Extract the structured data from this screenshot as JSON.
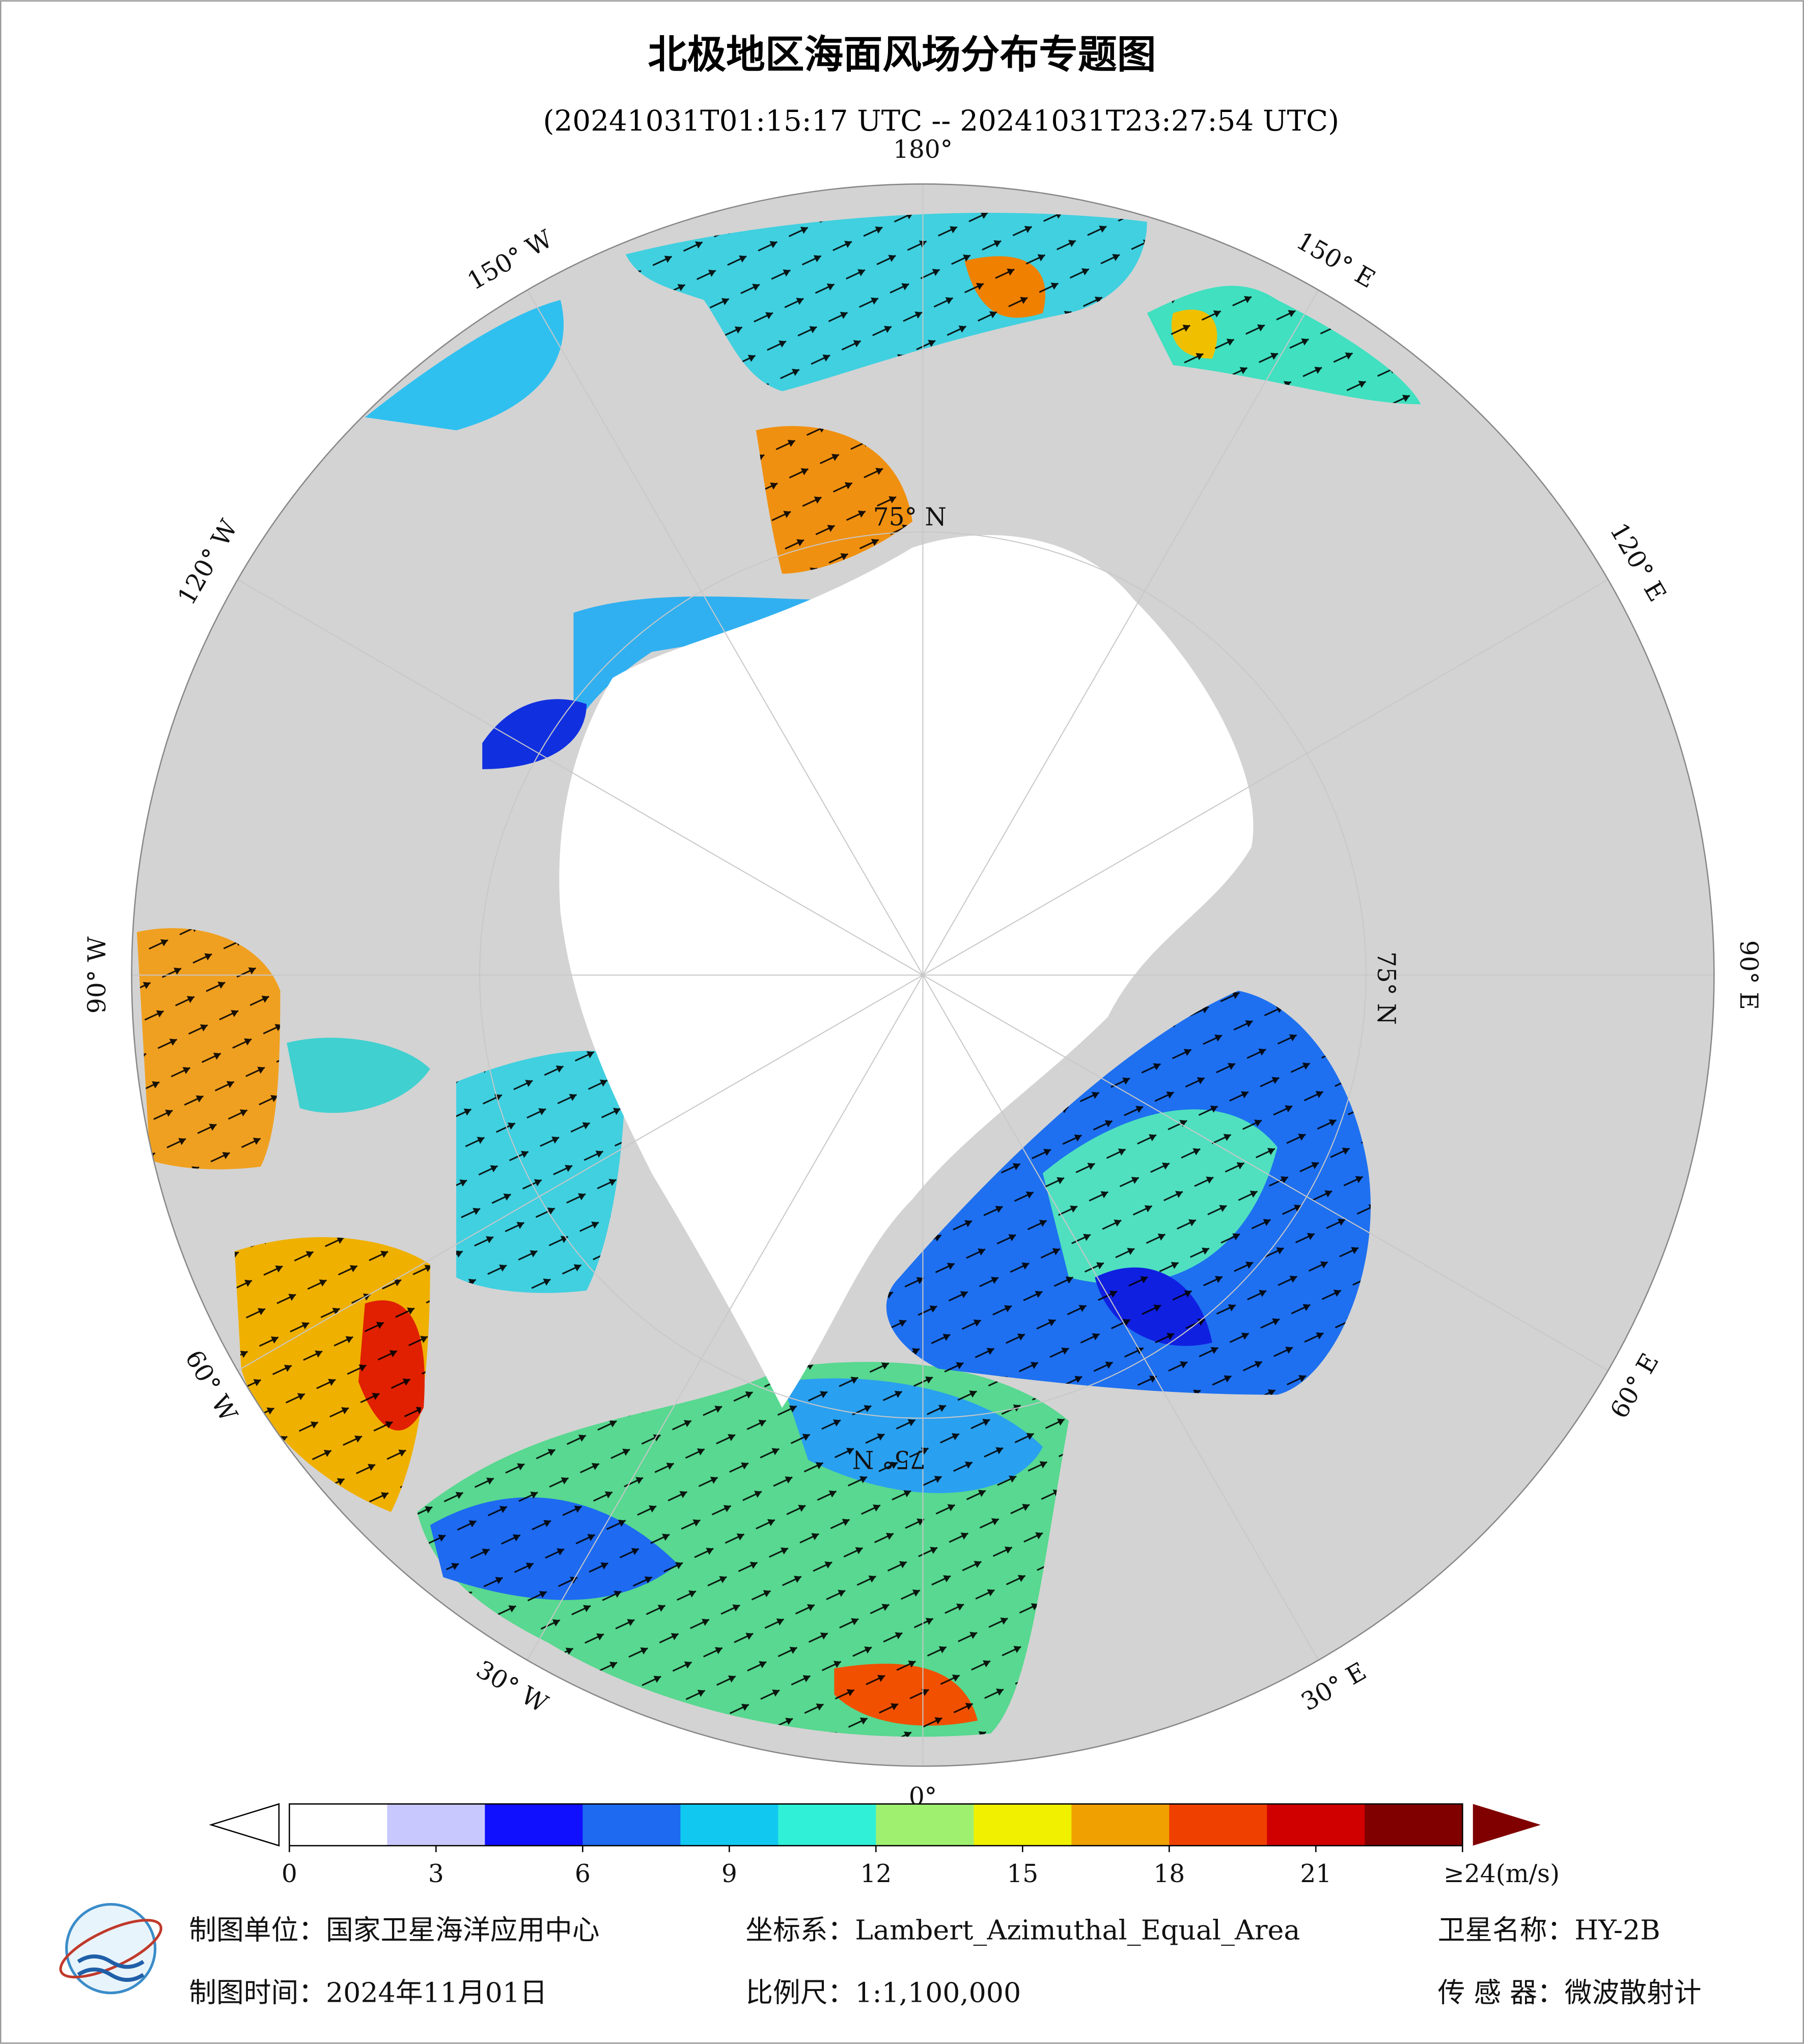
{
  "map": {
    "title": "北极地区海面风场分布专题图",
    "subtitle": "(20241031T01:15:17 UTC -- 20241031T23:27:54 UTC)",
    "meridian_labels": [
      "0°",
      "30° E",
      "60° E",
      "90° E",
      "120° E",
      "150° E",
      "180°",
      "150° W",
      "120° W",
      "90° W",
      "60° W",
      "30° W"
    ],
    "parallel_labels": [
      "75° N",
      "75° N",
      "75° N"
    ],
    "colorbar": {
      "range": [
        0,
        24
      ],
      "ticks": [
        0,
        3,
        6,
        9,
        12,
        15,
        18,
        21,
        {
          "value": 24,
          "label": "≥24(m/s)"
        }
      ],
      "colors": [
        "#ffffff",
        "#c8c8ff",
        "#1010ff",
        "#1e6af0",
        "#10c8f0",
        "#30f0d8",
        "#a0f070",
        "#f0f000",
        "#f0a000",
        "#f04000",
        "#d00000",
        "#800000"
      ]
    },
    "footer": [
      "制图单位：国家卫星海洋应用中心",
      "坐标系：Lambert_Azimuthal_Equal_Area",
      "卫星名称：HY-2B",
      "制图时间：2024年11月01日",
      "比例尺：1:1,100,000",
      "传 感 器：微波散射计"
    ]
  }
}
